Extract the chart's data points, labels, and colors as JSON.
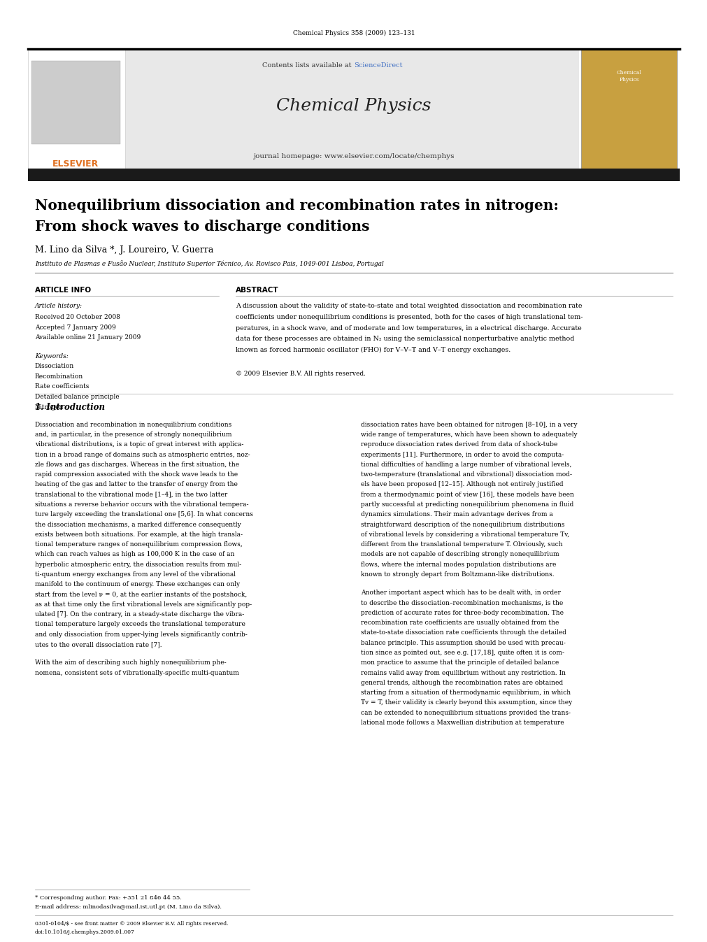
{
  "page_header": "Chemical Physics 358 (2009) 123–131",
  "journal_name": "Chemical Physics",
  "contents_text": "Contents lists available at ",
  "sciencedirect_text": "ScienceDirect",
  "homepage_text": "journal homepage: www.elsevier.com/locate/chemphys",
  "elsevier_text": "ELSEVIER",
  "title_line1": "Nonequilibrium dissociation and recombination rates in nitrogen:",
  "title_line2": "From shock waves to discharge conditions",
  "authors": "M. Lino da Silva *, J. Loureiro, V. Guerra",
  "affiliation": "Instituto de Plasmas e Fusão Nuclear, Instituto Superior Técnico, Av. Rovisco Pais, 1049-001 Lisboa, Portugal",
  "article_info_header": "ARTICLE INFO",
  "abstract_header": "ABSTRACT",
  "article_history_label": "Article history:",
  "received_text": "Received 20 October 2008",
  "accepted_text": "Accepted 7 January 2009",
  "available_text": "Available online 21 January 2009",
  "keywords_label": "Keywords:",
  "keyword1": "Dissociation",
  "keyword2": "Recombination",
  "keyword3": "Rate coefficients",
  "keyword4": "Detailed balance principle",
  "keyword5": "Nitrogen",
  "abstract_text": "A discussion about the validity of state-to-state and total weighted dissociation and recombination rate\ncoefficients under nonequilibrium conditions is presented, both for the cases of high translational tem-\nperatures, in a shock wave, and of moderate and low temperatures, in a electrical discharge. Accurate\ndata for these processes are obtained in N₂ using the semiclassical nonperturbative analytic method\nknown as forced harmonic oscillator (FHO) for V–V–T and V–T energy exchanges.",
  "copyright_text": "© 2009 Elsevier B.V. All rights reserved.",
  "section1_header": "1. Introduction",
  "intro_col1_para1": "Dissociation and recombination in nonequilibrium conditions\nand, in particular, in the presence of strongly nonequilibrium\nvibrational distributions, is a topic of great interest with applica-\ntion in a broad range of domains such as atmospheric entries, noz-\nzle flows and gas discharges. Whereas in the first situation, the\nrapid compression associated with the shock wave leads to the\nheating of the gas and latter to the transfer of energy from the\ntranslational to the vibrational mode [1–4], in the two latter\nsituations a reverse behavior occurs with the vibrational tempera-\nture largely exceeding the translational one [5,6]. In what concerns\nthe dissociation mechanisms, a marked difference consequently\nexists between both situations. For example, at the high transla-\ntional temperature ranges of nonequilibrium compression flows,\nwhich can reach values as high as 100,000 K in the case of an\nhyperbolic atmospheric entry, the dissociation results from mul-\nti-quantum energy exchanges from any level of the vibrational\nmanifold to the continuum of energy. These exchanges can only\nstart from the level ν = 0, at the earlier instants of the postshock,\nas at that time only the first vibrational levels are significantly pop-\nulated [7]. On the contrary, in a steady-state discharge the vibra-\ntional temperature largely exceeds the translational temperature\nand only dissociation from upper-lying levels significantly contrib-\nutes to the overall dissociation rate [7].",
  "intro_col1_para2": "With the aim of describing such highly nonequilibrium phe-\nnomena, consistent sets of vibrationally-specific multi-quantum",
  "intro_col2_para1": "dissociation rates have been obtained for nitrogen [8–10], in a very\nwide range of temperatures, which have been shown to adequately\nreproduce dissociation rates derived from data of shock-tube\nexperiments [11]. Furthermore, in order to avoid the computa-\ntional difficulties of handling a large number of vibrational levels,\ntwo-temperature (translational and vibrational) dissociation mod-\nels have been proposed [12–15]. Although not entirely justified\nfrom a thermodynamic point of view [16], these models have been\npartly successful at predicting nonequilibrium phenomena in fluid\ndynamics simulations. Their main advantage derives from a\nstraightforward description of the nonequilibrium distributions\nof vibrational levels by considering a vibrational temperature Tv,\ndifferent from the translational temperature T. Obviously, such\nmodels are not capable of describing strongly nonequilibrium\nflows, where the internal modes population distributions are\nknown to strongly depart from Boltzmann-like distributions.",
  "intro_col2_para2": "Another important aspect which has to be dealt with, in order\nto describe the dissociation–recombination mechanisms, is the\nprediction of accurate rates for three-body recombination. The\nrecombination rate coefficients are usually obtained from the\nstate-to-state dissociation rate coefficients through the detailed\nbalance principle. This assumption should be used with precau-\ntion since as pointed out, see e.g. [17,18], quite often it is com-\nmon practice to assume that the principle of detailed balance\nremains valid away from equilibrium without any restriction. In\ngeneral trends, although the recombination rates are obtained\nstarting from a situation of thermodynamic equilibrium, in which\nTv = T, their validity is clearly beyond this assumption, since they\ncan be extended to nonequilibrium situations provided the trans-\nlational mode follows a Maxwellian distribution at temperature",
  "footnote_star": "* Corresponding author. Fax: +351 21 846 44 55.",
  "footnote_email": "E-mail address: mlinodasilva@mail.ist.utl.pt (M. Lino da Silva).",
  "footer_line1": "0301-0104/$ - see front matter © 2009 Elsevier B.V. All rights reserved.",
  "footer_line2": "doi:10.1016/j.chemphys.2009.01.007",
  "bg_color": "#ffffff",
  "header_bg": "#e8e8e8",
  "text_color": "#000000",
  "blue_color": "#4472c4",
  "orange_color": "#e07020",
  "dark_bar_color": "#1a1a1a"
}
